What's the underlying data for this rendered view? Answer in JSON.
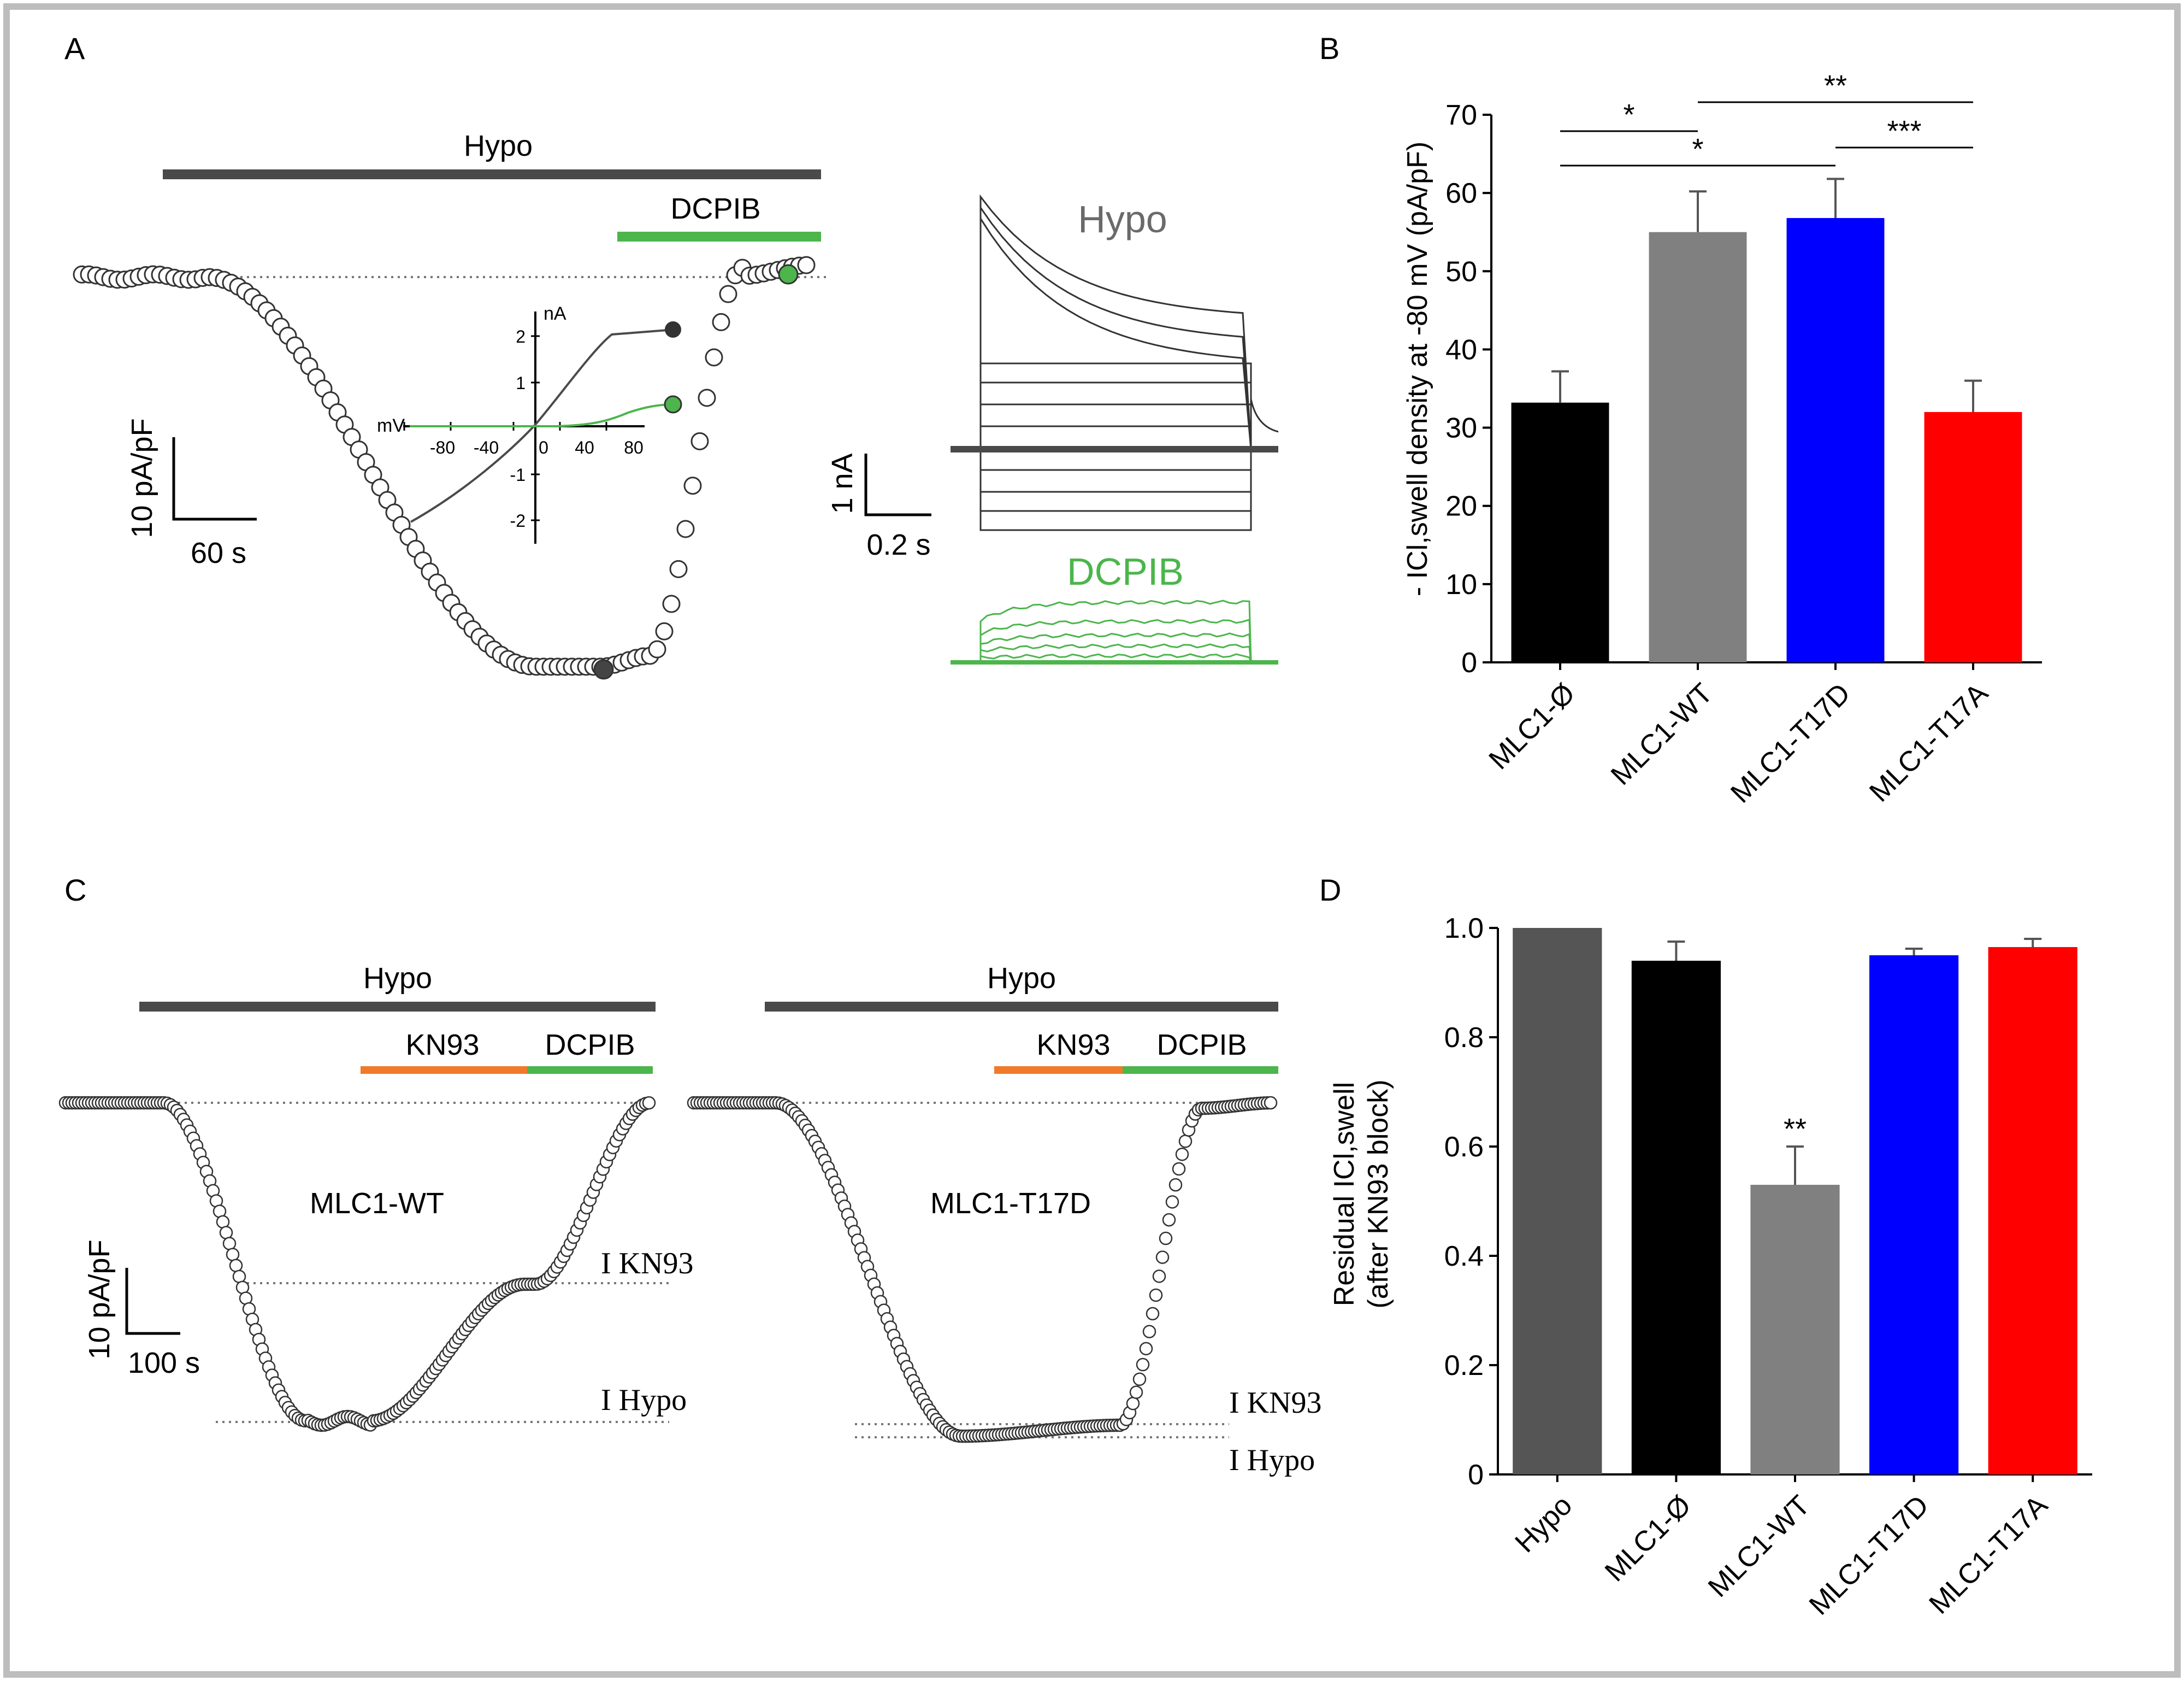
{
  "panel_labels": [
    "A",
    "B",
    "C",
    "D"
  ],
  "colors": {
    "frame": "#bdbdbd",
    "dark": "#4a4a4a",
    "green": "#4cb54c",
    "orange": "#f07a2a",
    "black": "#000000",
    "gray": "#808080",
    "blue": "#0000ff",
    "red": "#ff0000",
    "hypo_bar_D": "#555555"
  },
  "panel_a": {
    "hypo_label": "Hypo",
    "dcpib_label": "DCPIB",
    "scale_y": "10 pA/pF",
    "scale_x": "60 s",
    "inset": {
      "x_unit": "mV",
      "y_unit": "nA",
      "x_ticks": [
        "-80",
        "-40",
        "0",
        "40",
        "80"
      ],
      "y_ticks": [
        "2",
        "1",
        "-1",
        "-2"
      ]
    },
    "traces": {
      "hypo_label": "Hypo",
      "dcpib_label": "DCPIB",
      "scale_y": "1 nA",
      "scale_x": "0.2 s"
    }
  },
  "panel_c": {
    "left": {
      "hypo_label": "Hypo",
      "kn93_label": "KN93",
      "dcpib_label": "DCPIB",
      "condition": "MLC1-WT",
      "i_kn93": "I KN93",
      "i_hypo": "I Hypo",
      "scale_y": "10 pA/pF",
      "scale_x": "100 s"
    },
    "right": {
      "hypo_label": "Hypo",
      "kn93_label": "KN93",
      "dcpib_label": "DCPIB",
      "condition": "MLC1-T17D",
      "i_kn93": "I KN93",
      "i_hypo": "I Hypo"
    }
  },
  "chart_data": [
    {
      "panel": "B",
      "type": "bar",
      "categories": [
        "MLC1-Ø",
        "MLC1-WT",
        "MLC1-T17D",
        "MLC1-T17A"
      ],
      "values": [
        33.2,
        55.0,
        56.8,
        32.0
      ],
      "errors": [
        4.0,
        5.2,
        5.0,
        4.0
      ],
      "bar_colors": [
        "#000000",
        "#808080",
        "#0000ff",
        "#ff0000"
      ],
      "ylabel": "- ICl,swell density at -80 mV (pA/pF)",
      "ylim": [
        0,
        70
      ],
      "yticks": [
        "0",
        "10",
        "20",
        "30",
        "40",
        "50",
        "60",
        "70"
      ],
      "significance": [
        {
          "from": 0,
          "to": 1,
          "label": "*"
        },
        {
          "from": 0,
          "to": 2,
          "label": "*"
        },
        {
          "from": 1,
          "to": 3,
          "label": "**"
        },
        {
          "from": 2,
          "to": 3,
          "label": "***"
        }
      ]
    },
    {
      "panel": "D",
      "type": "bar",
      "categories": [
        "Hypo",
        "MLC1-Ø",
        "MLC1-WT",
        "MLC1-T17D",
        "MLC1-T17A"
      ],
      "values": [
        1.0,
        0.94,
        0.53,
        0.95,
        0.965
      ],
      "errors": [
        0.0,
        0.035,
        0.07,
        0.012,
        0.015
      ],
      "bar_colors": [
        "#555555",
        "#000000",
        "#808080",
        "#0000ff",
        "#ff0000"
      ],
      "ylabel_lines": [
        "Residual ICl,swell",
        "(after KN93 block)"
      ],
      "ylim": [
        0,
        1.0
      ],
      "yticks": [
        "0",
        "0.2",
        "0.4",
        "0.6",
        "0.8",
        "1.0"
      ],
      "annotations": [
        {
          "index": 2,
          "label": "**"
        }
      ]
    }
  ]
}
